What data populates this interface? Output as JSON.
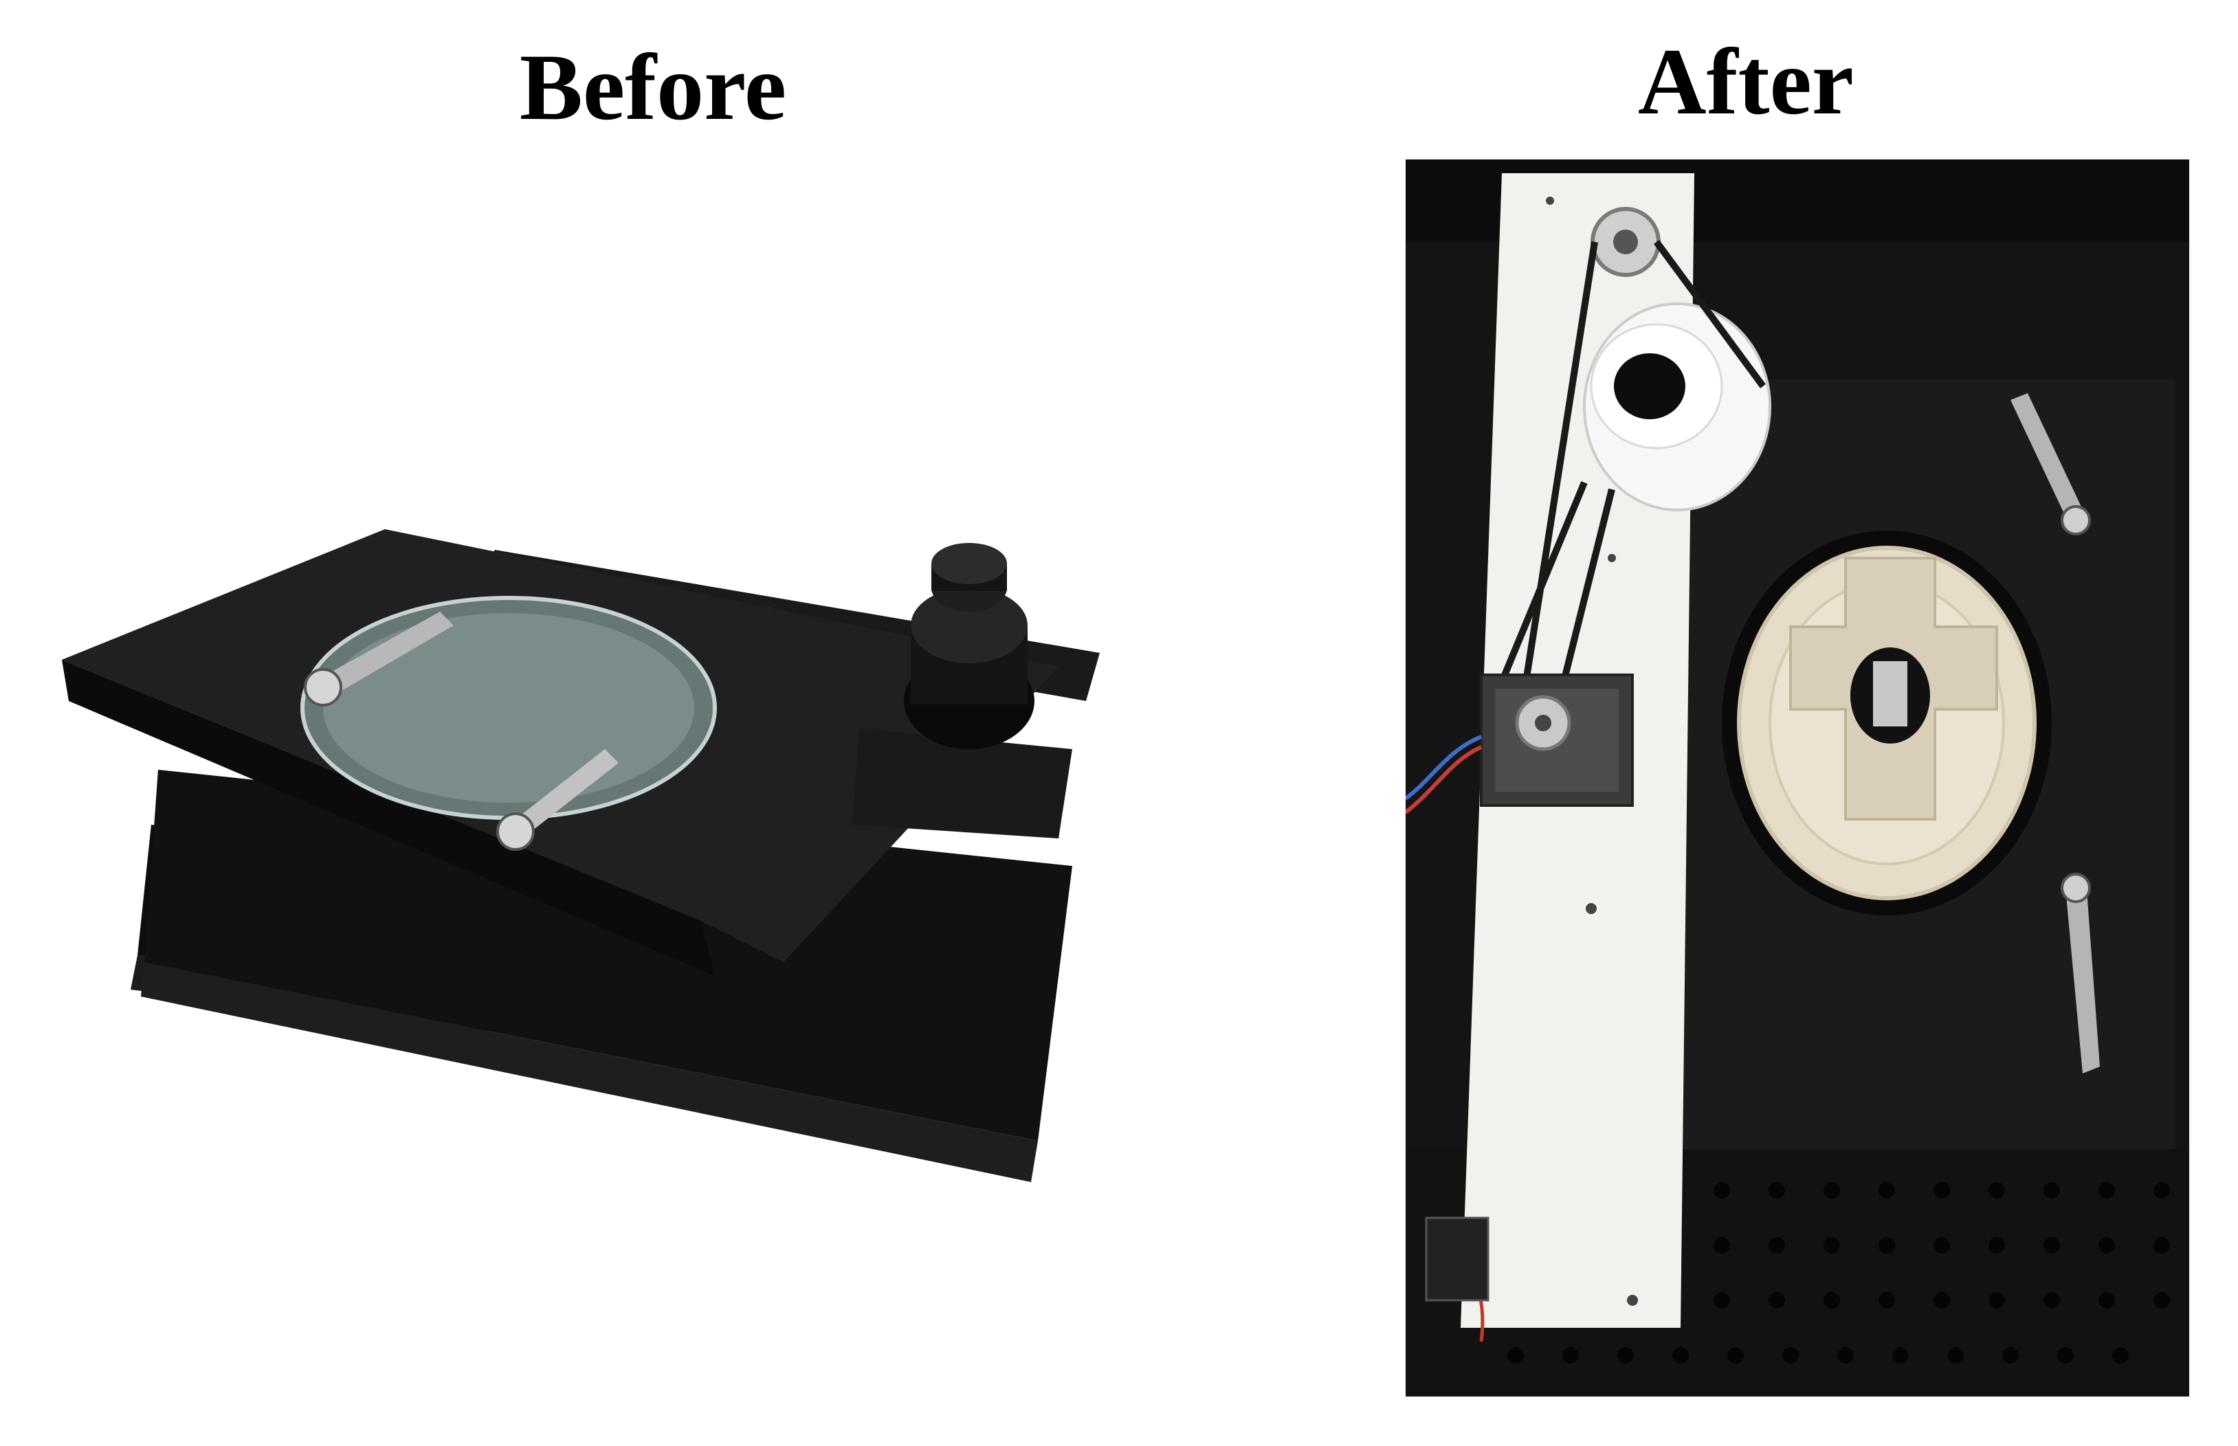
{
  "panels": {
    "before": {
      "title": "Before"
    },
    "after": {
      "title": "After"
    }
  },
  "colors": {
    "background": "#ffffff",
    "stage_black": "#151515",
    "plate_white": "#f1f1ee",
    "rotator_cream": "#e6ddc8"
  },
  "icons": {
    "before": "microscope-stage-photo",
    "after": "motorized-rotating-stage-photo"
  }
}
